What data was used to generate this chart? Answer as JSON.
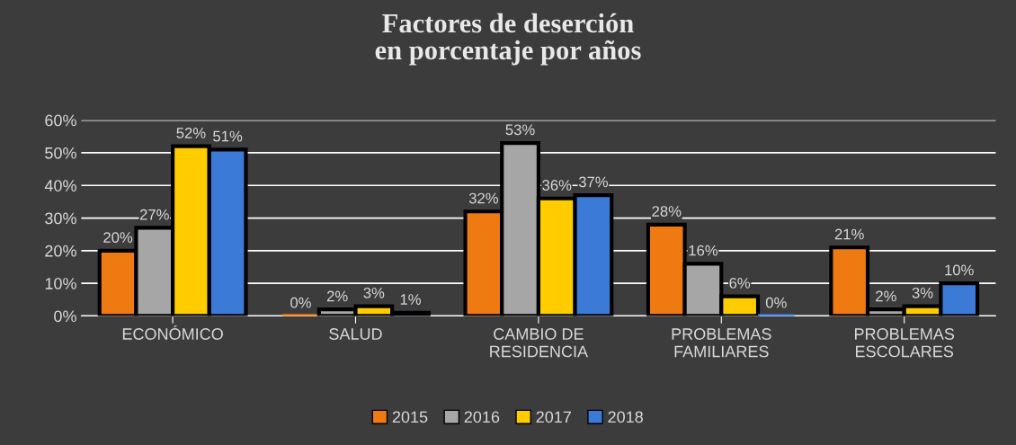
{
  "chart_data": {
    "type": "bar",
    "title": "Factores de deserción\nen porcentaje por años",
    "categories": [
      "ECONÓMICO",
      "SALUD",
      "CAMBIO DE\nRESIDENCIA",
      "PROBLEMAS\nFAMILIARES",
      "PROBLEMAS\nESCOLARES"
    ],
    "series": [
      {
        "name": "2015",
        "color": "#f07a12",
        "values": [
          20,
          0,
          32,
          28,
          21
        ],
        "value_labels": [
          "20%",
          "0%",
          "32%",
          "28%",
          "21%"
        ]
      },
      {
        "name": "2016",
        "color": "#a6a6a6",
        "values": [
          27,
          2,
          53,
          16,
          2
        ],
        "value_labels": [
          "27%",
          "2%",
          "53%",
          "16%",
          "2%"
        ]
      },
      {
        "name": "2017",
        "color": "#ffcc00",
        "values": [
          52,
          3,
          36,
          6,
          3
        ],
        "value_labels": [
          "52%",
          "3%",
          "36%",
          "6%",
          "3%"
        ]
      },
      {
        "name": "2018",
        "color": "#3c7ad8",
        "values": [
          51,
          1,
          37,
          0,
          10
        ],
        "value_labels": [
          "51%",
          "1%",
          "37%",
          "0%",
          "10%"
        ]
      }
    ],
    "ylim": [
      0,
      60
    ],
    "yticks": [
      {
        "value": 0,
        "label": "0%"
      },
      {
        "value": 10,
        "label": "10%"
      },
      {
        "value": 20,
        "label": "20%"
      },
      {
        "value": 30,
        "label": "30%"
      },
      {
        "value": 40,
        "label": "40%"
      },
      {
        "value": 50,
        "label": "50%"
      },
      {
        "value": 60,
        "label": "60%"
      }
    ],
    "grid": "y",
    "legend": "bottom"
  }
}
